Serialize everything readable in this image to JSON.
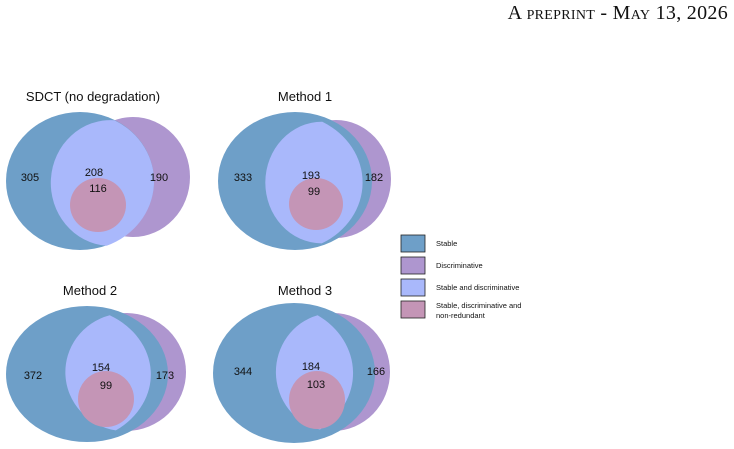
{
  "header": {
    "part1": "A ",
    "part2": "preprint",
    "part3": " - ",
    "part4": "May",
    "part5": " 13, 2026"
  },
  "colors": {
    "stable": "#6e9fc8",
    "discriminative": "#ae96cf",
    "stable_and_discriminative": "#a9b8fb",
    "non_redundant": "#c495b6"
  },
  "venns": [
    {
      "title": "SDCT (no degradation)",
      "stable_only": "305",
      "overlap": "208",
      "discriminative_only": "190",
      "non_redundant": "116"
    },
    {
      "title": "Method 1",
      "stable_only": "333",
      "overlap": "193",
      "discriminative_only": "182",
      "non_redundant": "99"
    },
    {
      "title": "Method 2",
      "stable_only": "372",
      "overlap": "154",
      "discriminative_only": "173",
      "non_redundant": "99"
    },
    {
      "title": "Method 3",
      "stable_only": "344",
      "overlap": "184",
      "discriminative_only": "166",
      "non_redundant": "103"
    }
  ],
  "legend": [
    {
      "label": "Stable"
    },
    {
      "label": "Discriminative"
    },
    {
      "label": "Stable and discriminative"
    },
    {
      "label_lines": [
        "Stable, discriminative and",
        "non-redundant"
      ]
    }
  ]
}
